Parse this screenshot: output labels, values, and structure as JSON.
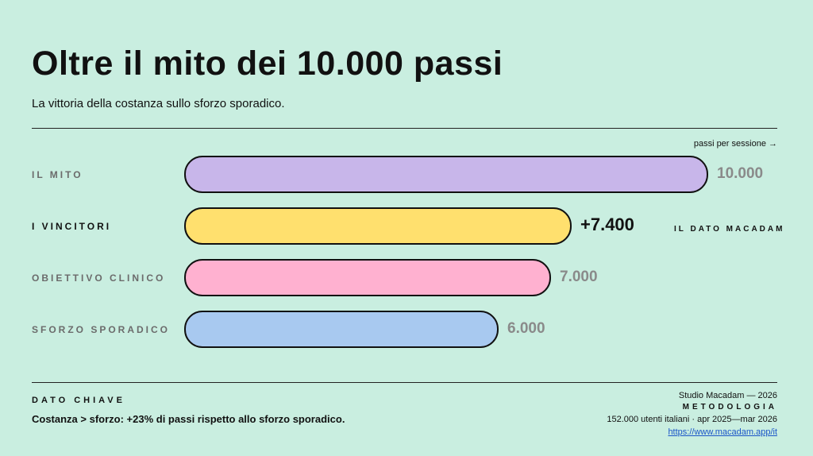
{
  "title": "Oltre il mito dei 10.000 passi",
  "subtitle": "La vittoria della costanza sullo sforzo sporadico.",
  "colors": {
    "background": "#c9eee0",
    "mito": "#c8b6ea",
    "vincitori": "#ffe06e",
    "clinico": "#ffb1d0",
    "sporadico": "#a8c9f0",
    "link": "#1a55c8"
  },
  "chart_data": {
    "type": "bar",
    "orientation": "horizontal",
    "unit_label": "passi per sessione →",
    "categories": [
      "IL MITO",
      "I VINCITORI",
      "OBIETTIVO CLINICO",
      "SFORZO SPORADICO"
    ],
    "values": [
      10000,
      7400,
      7000,
      6000
    ],
    "value_labels": [
      "10.000",
      "+7.400",
      "7.000",
      "6.000"
    ],
    "highlight_index": 1,
    "callout": "IL DATO MACADAM",
    "xlim": [
      0,
      10000
    ],
    "grid": false
  },
  "key": {
    "title": "DATO CHIAVE",
    "text": "Costanza > sforzo: +23% di passi rispetto allo sforzo sporadico."
  },
  "methodology": {
    "credit": "Studio Macadam — 2026",
    "title": "METODOLOGIA",
    "text": "152.000 utenti italiani · apr 2025—mar 2026",
    "link": "https://www.macadam.app/it"
  }
}
